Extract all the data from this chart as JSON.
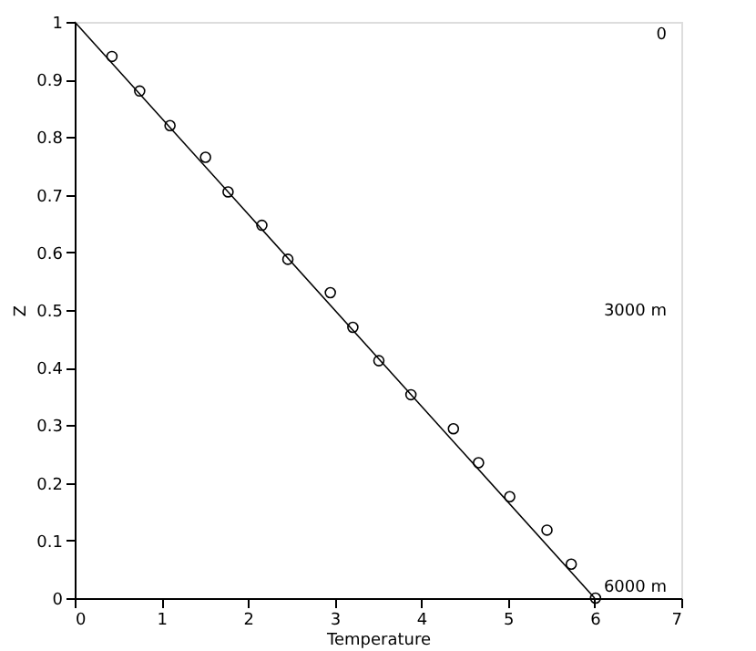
{
  "chart_data": {
    "type": "scatter",
    "xlabel": "Temperature",
    "ylabel": "Z",
    "xlim": [
      0,
      7
    ],
    "ylim": [
      0,
      1
    ],
    "xticks": [
      0,
      1,
      2,
      3,
      4,
      5,
      6,
      7
    ],
    "yticks": [
      0,
      0.1,
      0.2,
      0.3,
      0.4,
      0.5,
      0.6,
      0.7,
      0.8,
      0.9,
      1
    ],
    "grid": false,
    "legend": false,
    "marker": "circle",
    "series": [
      {
        "color": "#000000",
        "x": [
          0.43,
          0.75,
          1.1,
          1.51,
          1.77,
          2.16,
          2.46,
          2.95,
          3.21,
          3.51,
          3.88,
          4.37,
          4.66,
          5.02,
          5.45,
          5.73,
          6.01
        ],
        "values": [
          0.94,
          0.88,
          0.82,
          0.765,
          0.705,
          0.647,
          0.588,
          0.53,
          0.47,
          0.412,
          0.353,
          0.294,
          0.235,
          0.176,
          0.118,
          0.059,
          0.0
        ]
      },
      {
        "type": "line",
        "marker": "none",
        "line_style": "solid",
        "color": "#000000",
        "x": [
          0,
          6
        ],
        "values": [
          1,
          0
        ]
      }
    ],
    "annotations": [
      "0",
      "3000 m",
      "6000 m"
    ]
  }
}
